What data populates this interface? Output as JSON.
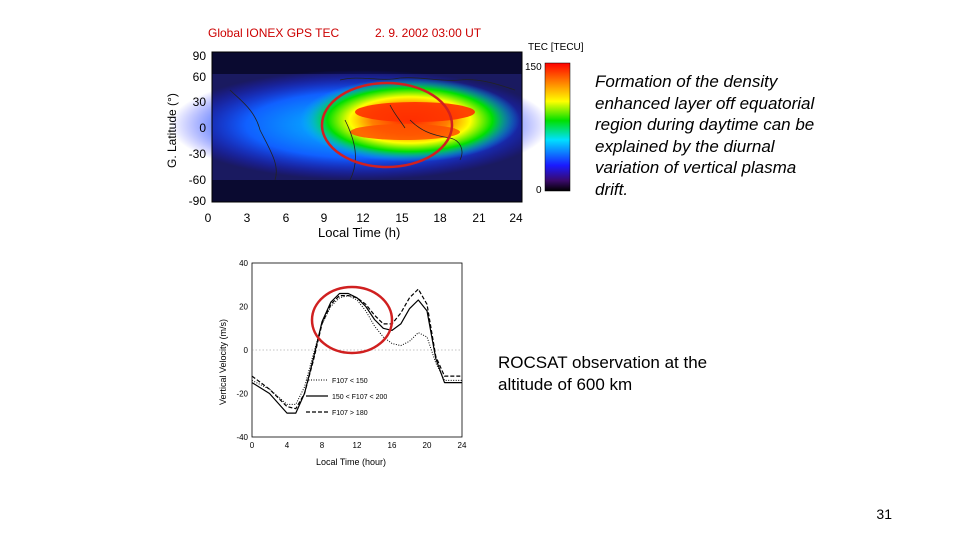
{
  "slide": {
    "page_number": "31",
    "right_text_1": "Formation of the density enhanced layer off equatorial region during daytime can be explained by the diurnal variation of vertical plasma drift.",
    "right_text_2": "ROCSAT observation at the altitude of 600 km"
  },
  "tec_map": {
    "title": "Global IONEX GPS TEC",
    "date": "2. 9. 2002  03:00 UT",
    "ylabel": "G. Latitude (°)",
    "xlabel": "Local Time (h)",
    "yticks": [
      "90",
      "60",
      "30",
      "0",
      "-30",
      "-60",
      "-90"
    ],
    "xticks": [
      "0",
      "3",
      "6",
      "9",
      "12",
      "15",
      "18",
      "21",
      "24"
    ],
    "colorbar_label": "TEC [TECU]",
    "colorbar_max": "150",
    "colorbar_min": "0",
    "colors": {
      "title": "#cc0000",
      "highlight_circle": "#d02020"
    }
  },
  "drift_plot": {
    "ylabel": "Vertical Velocity (m/s)",
    "xlabel": "Local Time (hour)",
    "yticks": [
      "40",
      "20",
      "0",
      "-20",
      "-40"
    ],
    "xticks": [
      "0",
      "4",
      "8",
      "12",
      "16",
      "20",
      "24"
    ],
    "legend": [
      "F107 < 150",
      "150 < F107 < 200",
      "F107 > 180"
    ]
  },
  "chart_data": {
    "type": "line",
    "xlabel": "Local Time (hour)",
    "ylabel": "Vertical Velocity (m/s)",
    "xlim": [
      0,
      24
    ],
    "ylim": [
      -40,
      40
    ],
    "legend_position": "bottom-left",
    "x": [
      0,
      2,
      4,
      5,
      6,
      7,
      8,
      9,
      10,
      11,
      12,
      13,
      14,
      15,
      16,
      17,
      18,
      19,
      20,
      21,
      22,
      24
    ],
    "series": [
      {
        "name": "F107 < 150",
        "style": "dotted",
        "values": [
          -14,
          -18,
          -25,
          -25,
          -17,
          -2,
          12,
          20,
          24,
          25,
          23,
          18,
          11,
          6,
          3,
          2,
          4,
          8,
          6,
          -6,
          -14,
          -14
        ]
      },
      {
        "name": "150 < F107 < 200",
        "style": "solid",
        "values": [
          -15,
          -20,
          -29,
          -29,
          -20,
          -4,
          13,
          22,
          26,
          26,
          24,
          20,
          14,
          10,
          9,
          12,
          19,
          23,
          18,
          -4,
          -15,
          -15
        ]
      },
      {
        "name": "F107 > 180",
        "style": "dashed",
        "values": [
          -12,
          -18,
          -26,
          -27,
          -20,
          -5,
          12,
          21,
          25,
          25,
          24,
          21,
          16,
          12,
          12,
          17,
          24,
          28,
          21,
          -3,
          -12,
          -12
        ]
      }
    ]
  }
}
